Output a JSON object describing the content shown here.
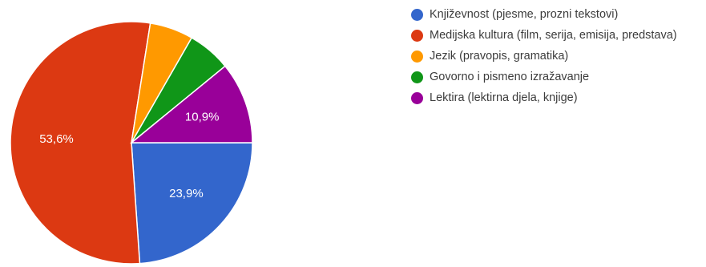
{
  "chart_data": {
    "type": "pie",
    "title": "",
    "categories": [
      "Književnost (pjesme, prozni tekstovi)",
      "Medijska kultura (film, serija, emisija, predstava)",
      "Jezik (pravopis, gramatika)",
      "Govorno i pismeno izražavanje",
      "Lektira (lektirna djela, knjige)"
    ],
    "values": [
      23.9,
      53.6,
      5.8,
      5.8,
      10.9
    ],
    "value_labels": [
      "23,9%",
      "53,6%",
      "",
      "",
      "10,9%"
    ],
    "colors": [
      "#3366cc",
      "#dc3912",
      "#ff9900",
      "#109618",
      "#990099"
    ],
    "legend_position": "right",
    "start_angle": "3 o'clock, clockwise"
  }
}
